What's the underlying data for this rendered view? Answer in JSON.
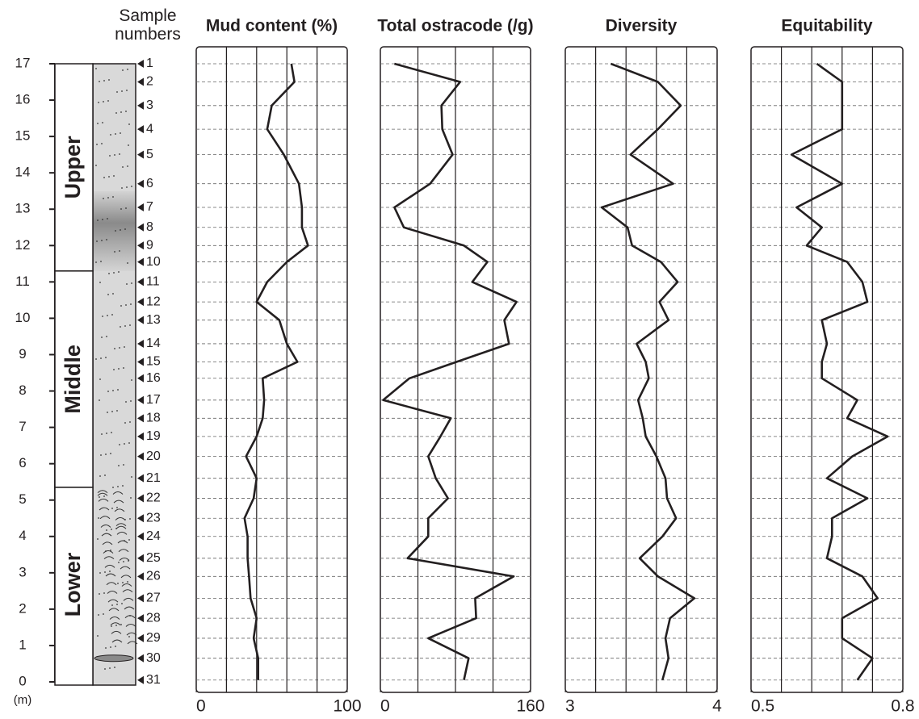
{
  "depth_axis": {
    "ylim": [
      0,
      17
    ],
    "yticks": [
      0,
      1,
      2,
      3,
      4,
      5,
      6,
      7,
      8,
      9,
      10,
      11,
      12,
      13,
      14,
      15,
      16,
      17
    ],
    "unit": "(m)"
  },
  "samples": {
    "title": "Sample numbers",
    "numbers": [
      1,
      2,
      3,
      4,
      5,
      6,
      7,
      8,
      9,
      10,
      11,
      12,
      13,
      14,
      15,
      16,
      17,
      18,
      19,
      20,
      21,
      22,
      23,
      24,
      25,
      26,
      27,
      28,
      29,
      30,
      31
    ],
    "depths": [
      17.0,
      16.5,
      15.85,
      15.2,
      14.5,
      13.7,
      13.05,
      12.5,
      12.0,
      11.55,
      11.0,
      10.45,
      9.95,
      9.3,
      8.8,
      8.35,
      7.75,
      7.25,
      6.75,
      6.2,
      5.6,
      5.05,
      4.5,
      4.0,
      3.4,
      2.9,
      2.3,
      1.75,
      1.2,
      0.65,
      0.05
    ]
  },
  "units": [
    {
      "name": "Upper",
      "range": [
        11.3,
        17
      ]
    },
    {
      "name": "Middle",
      "range": [
        5.35,
        11.3
      ]
    },
    {
      "name": "Lower",
      "range": [
        0,
        5.35
      ]
    }
  ],
  "chart_data": [
    {
      "type": "line",
      "title": "Mud content (%)",
      "color": "#231f20",
      "xlim": [
        0,
        100
      ],
      "xticks": [
        0,
        100
      ],
      "xgrid": [
        20,
        40,
        60,
        80
      ],
      "values": [
        63,
        65,
        50,
        47,
        58,
        68,
        70,
        70,
        74,
        60,
        47,
        40,
        55,
        60,
        67,
        44,
        45,
        44,
        40,
        33,
        40,
        38,
        32,
        34,
        34,
        35,
        36,
        40,
        38,
        41,
        41
      ]
    },
    {
      "type": "line",
      "title": "Total ostracode (/g)",
      "color": "#231f20",
      "xlim": [
        0,
        160
      ],
      "xticks": [
        0,
        160
      ],
      "xgrid": [
        40,
        80,
        120
      ],
      "values": [
        15,
        85,
        65,
        66,
        77,
        53,
        15,
        25,
        89,
        114,
        98,
        145,
        132,
        137,
        81,
        31,
        3,
        75,
        64,
        51,
        59,
        72,
        51,
        51,
        29,
        142,
        101,
        102,
        51,
        94,
        89
      ]
    },
    {
      "type": "line",
      "title": "Diversity",
      "color": "#231f20",
      "xlim": [
        3,
        4
      ],
      "xticks": [
        3,
        4
      ],
      "xgrid": [
        3.2,
        3.4,
        3.6,
        3.8
      ],
      "values": [
        3.3,
        3.61,
        3.76,
        3.61,
        3.43,
        3.71,
        3.24,
        3.41,
        3.44,
        3.63,
        3.74,
        3.62,
        3.68,
        3.47,
        3.53,
        3.55,
        3.48,
        3.51,
        3.53,
        3.6,
        3.66,
        3.67,
        3.73,
        3.64,
        3.49,
        3.61,
        3.85,
        3.69,
        3.66,
        3.68,
        3.64
      ]
    },
    {
      "type": "line",
      "title": "Equitability",
      "color": "#231f20",
      "xlim": [
        0.5,
        0.8
      ],
      "xticks": [
        0.5,
        0.8
      ],
      "xgrid": [
        0.56,
        0.62,
        0.68,
        0.74
      ],
      "values": [
        0.63,
        0.68,
        0.68,
        0.68,
        0.58,
        0.68,
        0.59,
        0.64,
        0.61,
        0.69,
        0.72,
        0.73,
        0.64,
        0.65,
        0.64,
        0.64,
        0.71,
        0.69,
        0.77,
        0.7,
        0.65,
        0.73,
        0.66,
        0.66,
        0.65,
        0.72,
        0.75,
        0.68,
        0.68,
        0.74,
        0.71
      ]
    }
  ]
}
